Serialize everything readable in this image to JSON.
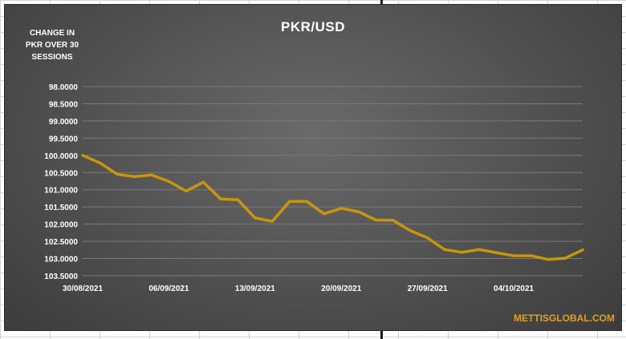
{
  "chart_data": {
    "type": "line",
    "title": "PKR/USD",
    "ylabel": "CHANGE IN PKR OVER 30 SESSIONS",
    "y_caption_lines": [
      "CHANGE IN",
      "PKR OVER 30",
      "SESSIONS"
    ],
    "y_inverted": true,
    "ylim": [
      98.0,
      103.5
    ],
    "y_ticks": [
      "98.0000",
      "98.5000",
      "99.0000",
      "99.5000",
      "100.0000",
      "100.5000",
      "101.0000",
      "101.5000",
      "102.0000",
      "102.5000",
      "103.0000",
      "103.5000"
    ],
    "x_ticks": [
      "30/08/2021",
      "06/09/2021",
      "13/09/2021",
      "20/09/2021",
      "27/09/2021",
      "04/10/2021"
    ],
    "x": [
      "30/08/2021",
      "31/08/2021",
      "01/09/2021",
      "02/09/2021",
      "03/09/2021",
      "06/09/2021",
      "07/09/2021",
      "08/09/2021",
      "09/09/2021",
      "10/09/2021",
      "13/09/2021",
      "14/09/2021",
      "15/09/2021",
      "16/09/2021",
      "17/09/2021",
      "20/09/2021",
      "21/09/2021",
      "22/09/2021",
      "23/09/2021",
      "24/09/2021",
      "27/09/2021",
      "28/09/2021",
      "29/09/2021",
      "30/09/2021",
      "01/10/2021",
      "04/10/2021",
      "05/10/2021",
      "06/10/2021",
      "07/10/2021",
      "08/10/2021"
    ],
    "series": [
      {
        "color": "#c8960c",
        "values": [
          100.0,
          100.22,
          100.55,
          100.62,
          100.57,
          100.76,
          101.04,
          100.78,
          101.27,
          101.29,
          101.82,
          101.92,
          101.34,
          101.34,
          101.7,
          101.54,
          101.64,
          101.88,
          101.89,
          102.19,
          102.4,
          102.74,
          102.82,
          102.74,
          102.83,
          102.92,
          102.92,
          103.03,
          102.99,
          102.75
        ]
      }
    ],
    "grid": true,
    "legend": "none",
    "watermark": "METTISGLOBAL.COM"
  }
}
